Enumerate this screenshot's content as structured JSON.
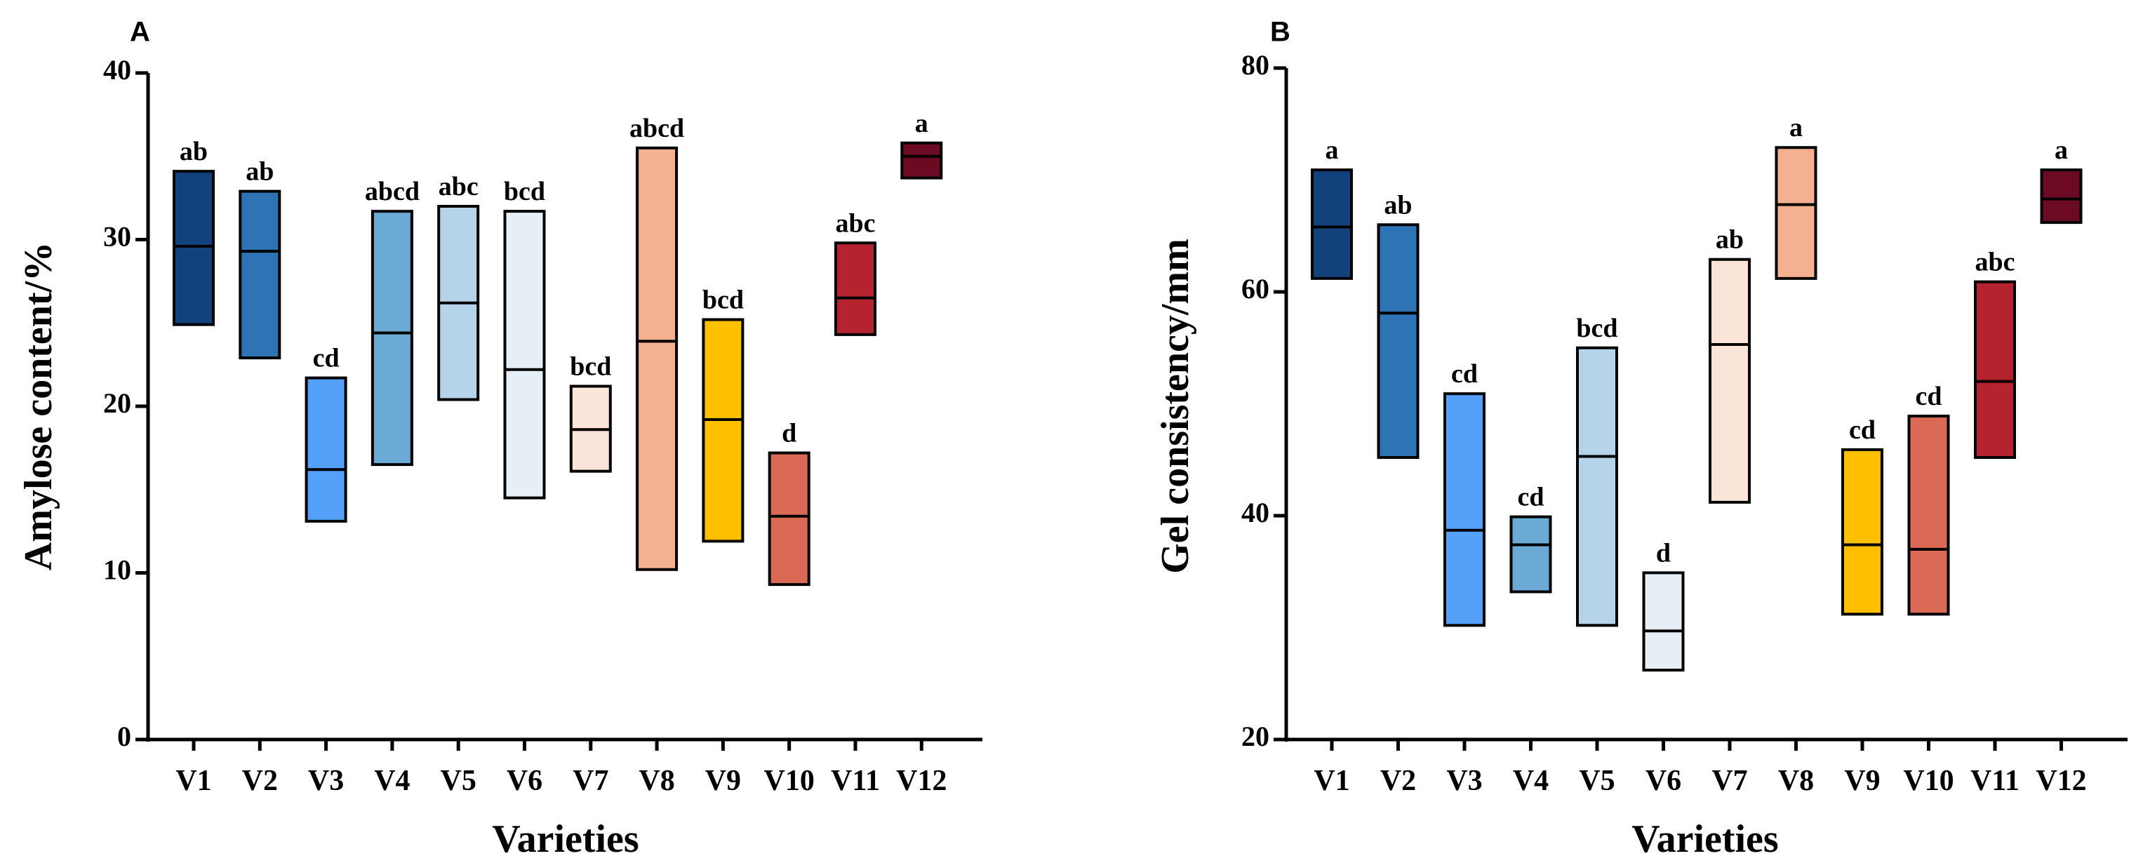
{
  "chart_data": [
    {
      "type": "box",
      "panel": "A",
      "ylabel": "Amylose content/%",
      "xlabel": "Varieties",
      "ylim": [
        0,
        40
      ],
      "yticks": [
        0,
        10,
        20,
        30,
        40
      ],
      "categories": [
        "V1",
        "V2",
        "V3",
        "V4",
        "V5",
        "V6",
        "V7",
        "V8",
        "V9",
        "V10",
        "V11",
        "V12"
      ],
      "boxes": [
        {
          "min": 24.9,
          "mean": 29.6,
          "max": 34.1,
          "label": "ab"
        },
        {
          "min": 22.9,
          "mean": 29.3,
          "max": 32.9,
          "label": "ab"
        },
        {
          "min": 13.1,
          "mean": 16.2,
          "max": 21.7,
          "label": "cd"
        },
        {
          "min": 16.5,
          "mean": 24.4,
          "max": 31.7,
          "label": "abcd"
        },
        {
          "min": 20.4,
          "mean": 26.2,
          "max": 32.0,
          "label": "abc"
        },
        {
          "min": 14.5,
          "mean": 22.2,
          "max": 31.7,
          "label": "bcd"
        },
        {
          "min": 16.1,
          "mean": 18.6,
          "max": 21.2,
          "label": "bcd"
        },
        {
          "min": 10.2,
          "mean": 23.9,
          "max": 35.5,
          "label": "abcd"
        },
        {
          "min": 11.9,
          "mean": 19.2,
          "max": 25.2,
          "label": "bcd"
        },
        {
          "min": 9.3,
          "mean": 13.4,
          "max": 17.2,
          "label": "d"
        },
        {
          "min": 24.3,
          "mean": 26.5,
          "max": 29.8,
          "label": "abc"
        },
        {
          "min": 33.7,
          "mean": 35.0,
          "max": 35.8,
          "label": "a"
        }
      ]
    },
    {
      "type": "box",
      "panel": "B",
      "ylabel": "Gel consistency/mm",
      "xlabel": "Varieties",
      "ylim": [
        20,
        80
      ],
      "yticks": [
        20,
        40,
        60,
        80
      ],
      "categories": [
        "V1",
        "V2",
        "V3",
        "V4",
        "V5",
        "V6",
        "V7",
        "V8",
        "V9",
        "V10",
        "V11",
        "V12"
      ],
      "boxes": [
        {
          "min": 61.2,
          "mean": 65.8,
          "max": 70.9,
          "label": "a"
        },
        {
          "min": 45.2,
          "mean": 58.1,
          "max": 66.0,
          "label": "ab"
        },
        {
          "min": 30.2,
          "mean": 38.7,
          "max": 50.9,
          "label": "cd"
        },
        {
          "min": 33.2,
          "mean": 37.4,
          "max": 39.9,
          "label": "cd"
        },
        {
          "min": 30.2,
          "mean": 45.3,
          "max": 55.0,
          "label": "bcd"
        },
        {
          "min": 26.2,
          "mean": 29.7,
          "max": 34.9,
          "label": "d"
        },
        {
          "min": 41.2,
          "mean": 55.3,
          "max": 62.9,
          "label": "ab"
        },
        {
          "min": 61.2,
          "mean": 67.8,
          "max": 72.9,
          "label": "a"
        },
        {
          "min": 31.2,
          "mean": 37.4,
          "max": 45.9,
          "label": "cd"
        },
        {
          "min": 31.2,
          "mean": 37.0,
          "max": 48.9,
          "label": "cd"
        },
        {
          "min": 45.2,
          "mean": 52.0,
          "max": 60.9,
          "label": "abc"
        },
        {
          "min": 66.2,
          "mean": 68.3,
          "max": 70.9,
          "label": "a"
        }
      ]
    }
  ],
  "colors": [
    "#12427b",
    "#2e74b5",
    "#55a0f8",
    "#6aaad4",
    "#b5d4ea",
    "#e6eff5",
    "#fbe5d9",
    "#f5b092",
    "#fdbf00",
    "#da6a55",
    "#b5232e",
    "#6b0a22"
  ]
}
